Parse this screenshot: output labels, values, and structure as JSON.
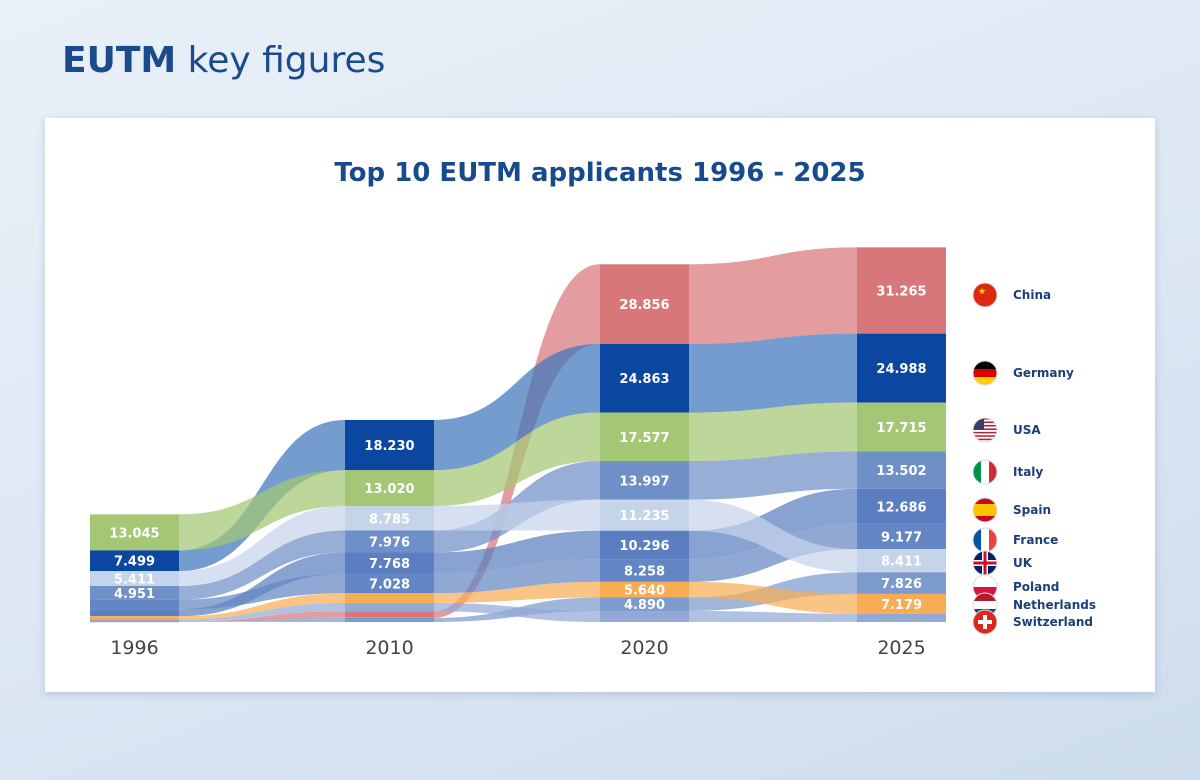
{
  "header": {
    "title_bold": "EUTM",
    "title_rest": " key figures"
  },
  "chart_data": {
    "type": "area",
    "title": "Top 10 EUTM applicants 1996 - 2025",
    "categories": [
      "1996",
      "2010",
      "2020",
      "2025"
    ],
    "series": [
      {
        "name": "China",
        "color": "#d8777a",
        "flag": "china-flag",
        "values": [
          0.1,
          2.4,
          28.856,
          31.265
        ]
      },
      {
        "name": "Germany",
        "color": "#0b47a0",
        "flow": "#3e76bb",
        "flag": "germany-flag",
        "values": [
          7.499,
          18.23,
          24.863,
          24.988
        ]
      },
      {
        "name": "USA",
        "color": "#a3c774",
        "flag": "usa-flag",
        "values": [
          13.045,
          13.02,
          17.577,
          17.715
        ]
      },
      {
        "name": "Italy",
        "color": "#6f8fc7",
        "flag": "italy-flag",
        "values": [
          4.951,
          7.976,
          13.997,
          13.502
        ]
      },
      {
        "name": "Spain",
        "color": "#5a7ec0",
        "flag": "spain-flag",
        "values": [
          2.5,
          7.768,
          10.296,
          12.686
        ]
      },
      {
        "name": "France",
        "color": "#6486c4",
        "flag": "france-flag",
        "values": [
          3.5,
          7.028,
          8.258,
          9.177
        ]
      },
      {
        "name": "UK",
        "color": "#c6d4ea",
        "flag": "uk-flag",
        "values": [
          5.411,
          8.785,
          11.235,
          8.411
        ]
      },
      {
        "name": "Poland",
        "color": "#7d9acd",
        "flag": "poland-flag",
        "values": [
          0.1,
          1.5,
          4.89,
          7.826
        ]
      },
      {
        "name": "Netherlands",
        "color": "#f8ad55",
        "flag": "netherlands-flag",
        "values": [
          1.2,
          3.5,
          5.64,
          7.179
        ]
      },
      {
        "name": "Switzerland",
        "color": "#93a9d5",
        "flag": "switzerland-flag",
        "values": [
          0.7,
          3.0,
          4.0,
          3.0
        ]
      }
    ],
    "labels_shown": [
      [
        "13.045",
        "7.499",
        "5.411",
        "4.951"
      ],
      [
        "18.230",
        "13.020",
        "8.785",
        "7.976",
        "7.768",
        "7.028"
      ],
      [
        "28.856",
        "24.863",
        "17.577",
        "13.997",
        "11.235",
        "10.296",
        "8.258",
        "5.640",
        "4.890"
      ],
      [
        "31.265",
        "24.988",
        "17.715",
        "13.502",
        "12.686",
        "9.177",
        "8.411",
        "7.826",
        "7.179"
      ]
    ],
    "legend_placement": "right",
    "grid": false
  }
}
